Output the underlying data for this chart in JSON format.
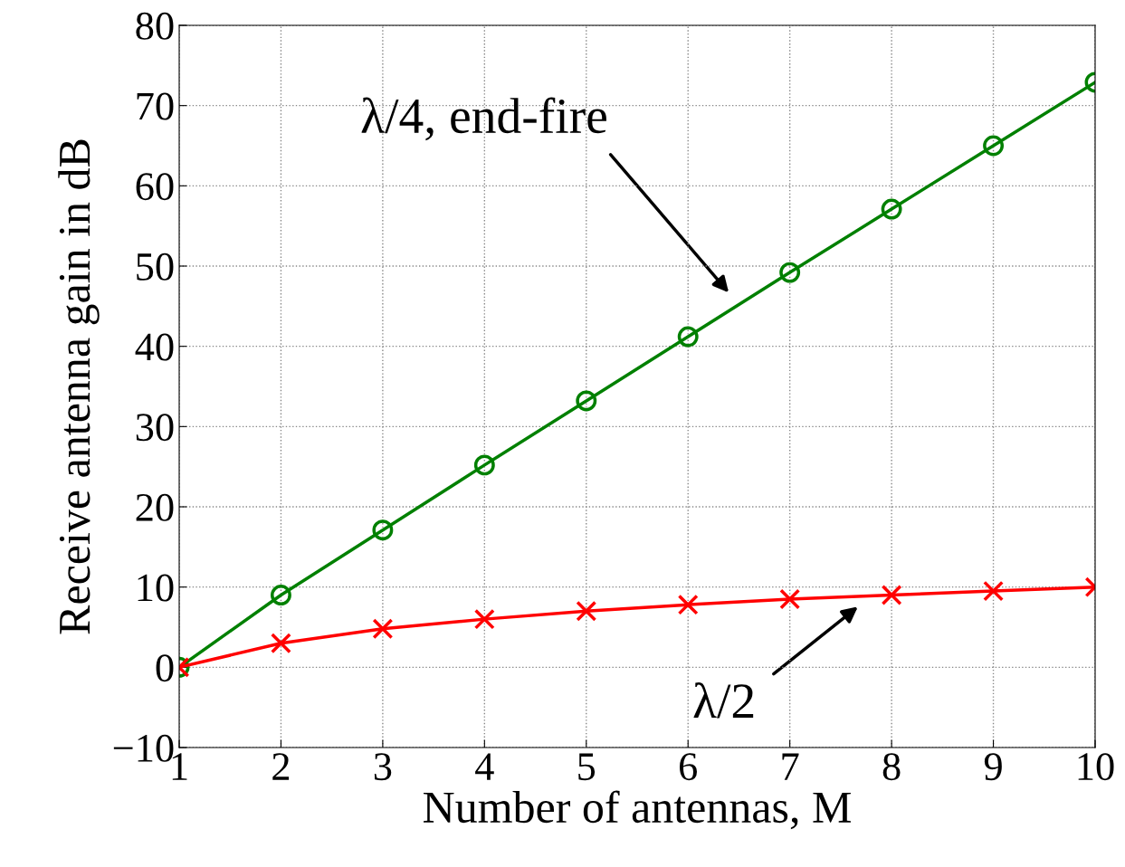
{
  "chart_data": {
    "type": "line",
    "xlabel": "Number of antennas, M",
    "ylabel": "Receive antenna gain in dB",
    "x": [
      1,
      2,
      3,
      4,
      5,
      6,
      7,
      8,
      9,
      10
    ],
    "series": [
      {
        "color": "#008000",
        "marker": "circle",
        "values": [
          0,
          9,
          17.1,
          25.2,
          33.2,
          41.2,
          49.2,
          57.1,
          65,
          72.9
        ]
      },
      {
        "color": "#ff0000",
        "marker": "cross",
        "values": [
          0,
          3,
          4.8,
          6,
          7,
          7.8,
          8.5,
          9,
          9.5,
          10
        ]
      }
    ],
    "annotations": [
      "λ/4, end-fire",
      "λ/2"
    ],
    "xlim": [
      1,
      10
    ],
    "xticks": [
      1,
      2,
      3,
      4,
      5,
      6,
      7,
      8,
      9,
      10
    ],
    "ylim": [
      -10,
      80
    ],
    "yticks": [
      {
        "value": -10,
        "label": "−10"
      },
      0,
      10,
      20,
      30,
      40,
      50,
      60,
      70,
      80
    ],
    "grid": true,
    "line_style": "solid"
  }
}
